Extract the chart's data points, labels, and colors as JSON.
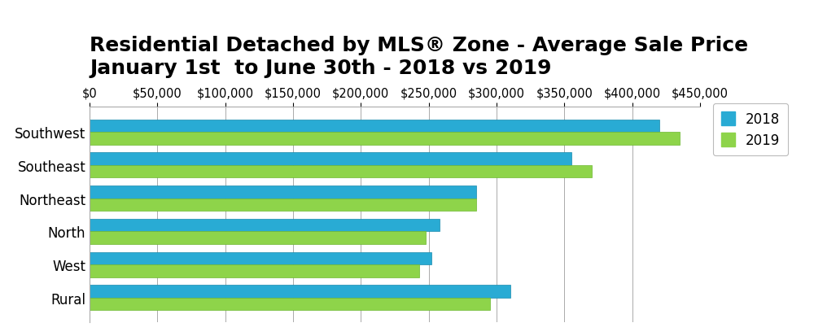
{
  "title_line1": "Residential Detached by MLS® Zone - Average Sale Price",
  "title_line2": "January 1st  to June 30th - 2018 vs 2019",
  "categories": [
    "Rural",
    "West",
    "North",
    "Northeast",
    "Southeast",
    "Southwest"
  ],
  "values_2018": [
    310000,
    252000,
    258000,
    285000,
    355000,
    420000
  ],
  "values_2019": [
    295000,
    243000,
    248000,
    285000,
    370000,
    435000
  ],
  "color_2018": "#29ABD4",
  "color_2019": "#8ED44A",
  "xlim": [
    0,
    450000
  ],
  "xticks": [
    0,
    50000,
    100000,
    150000,
    200000,
    250000,
    300000,
    350000,
    400000,
    450000
  ],
  "legend_labels": [
    "2018",
    "2019"
  ],
  "background_color": "#FFFFFF",
  "plot_bg_color": "#FFFFFF",
  "grid_color": "#AAAAAA",
  "title_fontsize": 18,
  "tick_fontsize": 10.5,
  "ylabel_fontsize": 12
}
